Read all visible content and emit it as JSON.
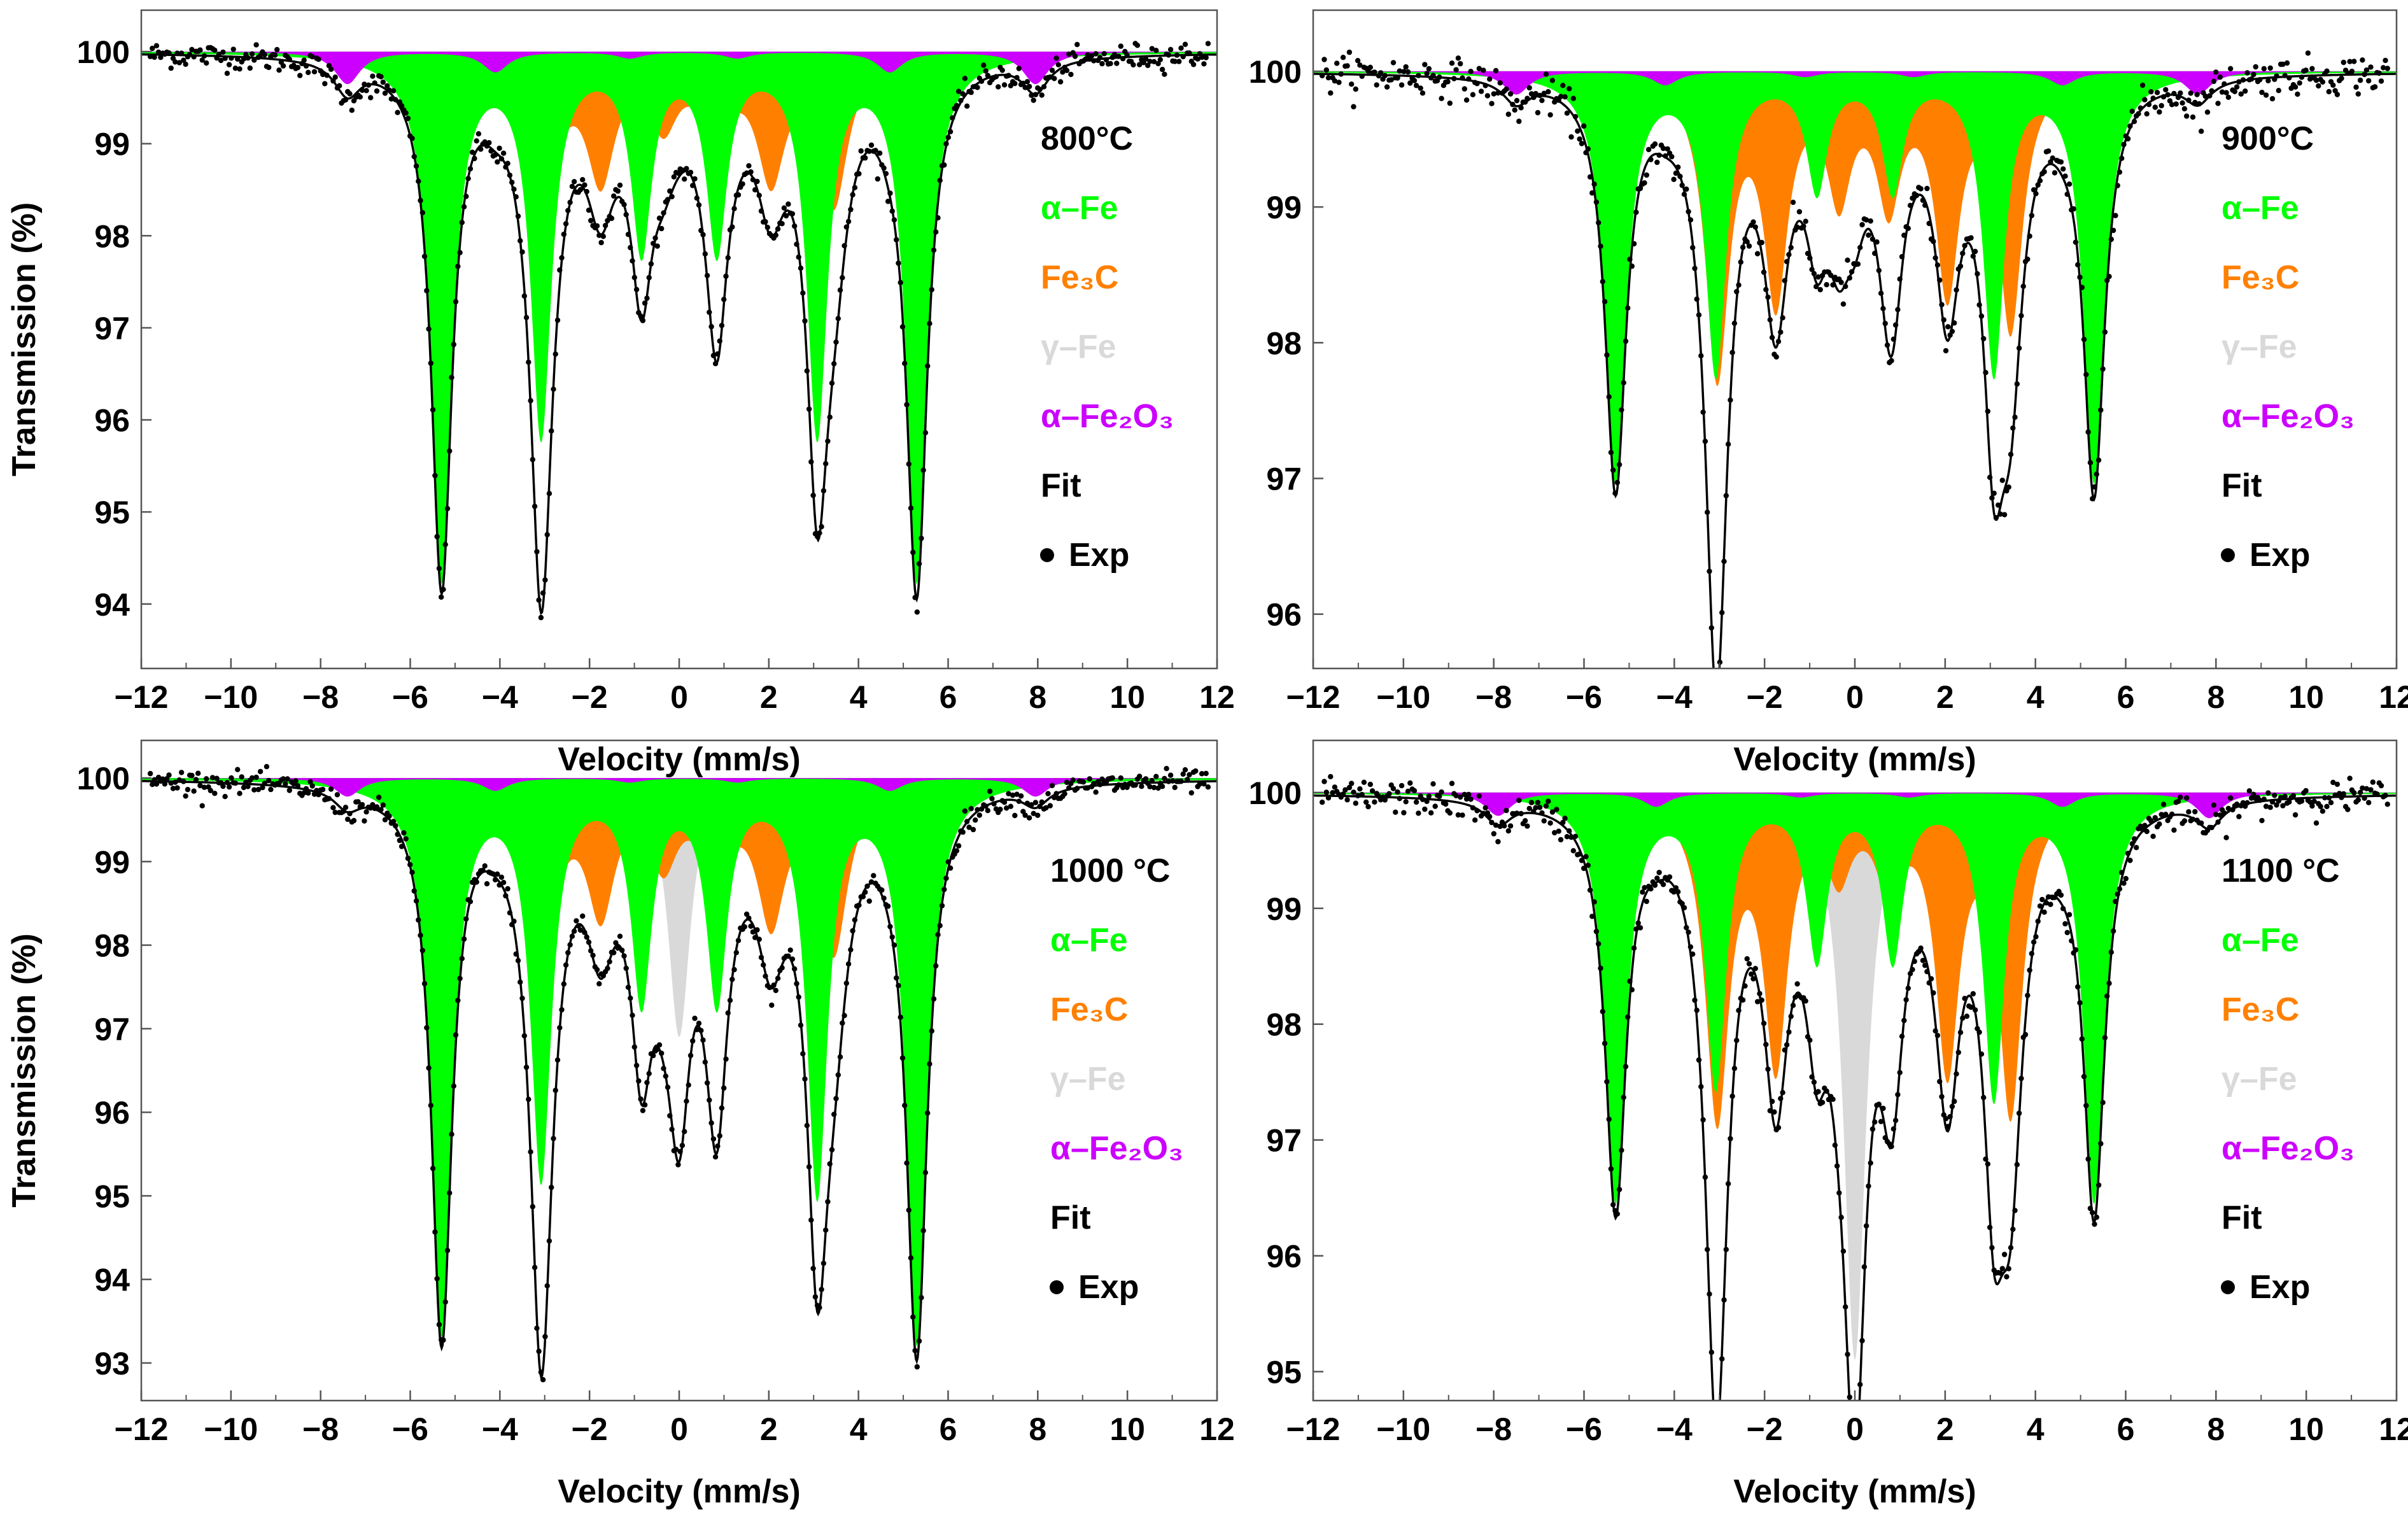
{
  "figure": {
    "colors": {
      "alpha_fe": "#00ff00",
      "fe3c": "#ff8000",
      "gamma_fe": "#d9d9d9",
      "alpha_fe2o3": "#cc00ff",
      "fit": "#000000",
      "exp": "#000000"
    }
  },
  "chart_data": [
    {
      "type": "scatter",
      "title": "800°C",
      "xlabel": "Velocity (mm/s)",
      "ylabel": "Transmission (%)",
      "xlim": [
        -12,
        12
      ],
      "ylim": [
        93.3,
        100.45
      ],
      "xticks": [
        -12,
        -10,
        -8,
        -6,
        -4,
        -2,
        0,
        2,
        4,
        6,
        8,
        10,
        12
      ],
      "xtick_labels": [
        "−12",
        "−10",
        "−8",
        "−6",
        "−4",
        "−2",
        "0",
        "2",
        "4",
        "6",
        "8",
        "10",
        "12"
      ],
      "yticks": [
        94,
        95,
        96,
        97,
        98,
        99,
        100
      ],
      "ytick_labels": [
        "94",
        "95",
        "96",
        "97",
        "98",
        "99",
        "100"
      ],
      "legend": [
        {
          "text": "800°C",
          "color": "#000000",
          "role": "title"
        },
        {
          "text": "α–Fe",
          "color": "#00ff00",
          "role": "alpha_fe"
        },
        {
          "text": "Fe₃C",
          "color": "#ff8000",
          "role": "fe3c"
        },
        {
          "text": "γ–Fe",
          "color": "#d9d9d9",
          "role": "gamma_fe"
        },
        {
          "text": "α–Fe₂O₃",
          "color": "#cc00ff",
          "role": "alpha_fe2o3"
        },
        {
          "text": "Fit",
          "color": "#000000",
          "role": "fit"
        },
        {
          "text": "Exp",
          "color": "#000000",
          "role": "exp"
        }
      ],
      "series": [
        {
          "name": "α-Fe",
          "color": "#00ff00",
          "gamma": 0.28,
          "positions": [
            -5.3,
            -3.08,
            -0.84,
            0.84,
            3.08,
            5.3
          ],
          "depths": [
            5.7,
            4.1,
            2.1,
            2.1,
            4.1,
            5.7
          ]
        },
        {
          "name": "Fe3C",
          "color": "#ff8000",
          "gamma": 0.38,
          "positions": [
            -3.05,
            -1.75,
            -0.35,
            0.8,
            2.05,
            3.45
          ],
          "depths": [
            1.7,
            1.3,
            0.7,
            0.8,
            1.3,
            1.6
          ]
        },
        {
          "name": "γ-Fe",
          "color": "#d9d9d9",
          "gamma": 0.35,
          "positions": [
            0.0
          ],
          "depths": [
            0.15
          ]
        },
        {
          "name": "α-Fe2O3",
          "color": "#cc00ff",
          "gamma": 0.35,
          "positions": [
            -7.4,
            -4.1,
            -1.1,
            1.3,
            4.7,
            7.95
          ],
          "depths": [
            0.35,
            0.22,
            0.07,
            0.07,
            0.22,
            0.35
          ]
        }
      ]
    },
    {
      "type": "scatter",
      "title": "900°C",
      "xlabel": "Velocity (mm/s)",
      "ylabel": "",
      "xlim": [
        -12,
        12
      ],
      "ylim": [
        95.6,
        100.45
      ],
      "xticks": [
        -12,
        -10,
        -8,
        -6,
        -4,
        -2,
        0,
        2,
        4,
        6,
        8,
        10,
        12
      ],
      "xtick_labels": [
        "−12",
        "−10",
        "−8",
        "−6",
        "−4",
        "−2",
        "0",
        "2",
        "4",
        "6",
        "8",
        "10",
        "12"
      ],
      "yticks": [
        96,
        97,
        98,
        99,
        100
      ],
      "ytick_labels": [
        "96",
        "97",
        "98",
        "99",
        "100"
      ],
      "legend": [
        {
          "text": "900°C",
          "color": "#000000",
          "role": "title"
        },
        {
          "text": "α–Fe",
          "color": "#00ff00",
          "role": "alpha_fe"
        },
        {
          "text": "Fe₃C",
          "color": "#ff8000",
          "role": "fe3c"
        },
        {
          "text": "γ–Fe",
          "color": "#d9d9d9",
          "role": "gamma_fe"
        },
        {
          "text": "α–Fe₂O₃",
          "color": "#cc00ff",
          "role": "alpha_fe2o3"
        },
        {
          "text": "Fit",
          "color": "#000000",
          "role": "fit"
        },
        {
          "text": "Exp",
          "color": "#000000",
          "role": "exp"
        }
      ],
      "series": [
        {
          "name": "α-Fe",
          "color": "#00ff00",
          "gamma": 0.28,
          "positions": [
            -5.3,
            -3.08,
            -0.84,
            0.84,
            3.08,
            5.3
          ],
          "depths": [
            3.0,
            2.2,
            0.85,
            0.85,
            2.2,
            3.0
          ]
        },
        {
          "name": "Fe3C",
          "color": "#ff8000",
          "gamma": 0.32,
          "positions": [
            -3.05,
            -1.75,
            -0.35,
            0.75,
            2.05,
            3.45
          ],
          "depths": [
            2.2,
            1.6,
            0.85,
            0.9,
            1.55,
            1.85
          ]
        },
        {
          "name": "γ-Fe",
          "color": "#d9d9d9",
          "gamma": 0.3,
          "positions": [
            0.0
          ],
          "depths": [
            0.55
          ]
        },
        {
          "name": "α-Fe2O3",
          "color": "#cc00ff",
          "gamma": 0.35,
          "positions": [
            -7.5,
            -4.2,
            -1.1,
            1.3,
            4.6,
            7.6
          ],
          "depths": [
            0.17,
            0.1,
            0.04,
            0.04,
            0.1,
            0.17
          ]
        }
      ]
    },
    {
      "type": "scatter",
      "title": "1000 °C",
      "xlabel": "Velocity (mm/s)",
      "ylabel": "Transmission (%)",
      "xlim": [
        -12,
        12
      ],
      "ylim": [
        92.55,
        100.45
      ],
      "xticks": [
        -12,
        -10,
        -8,
        -6,
        -4,
        -2,
        0,
        2,
        4,
        6,
        8,
        10,
        12
      ],
      "xtick_labels": [
        "−12",
        "−10",
        "−8",
        "−6",
        "−4",
        "−2",
        "0",
        "2",
        "4",
        "6",
        "8",
        "10",
        "12"
      ],
      "yticks": [
        93,
        94,
        95,
        96,
        97,
        98,
        99,
        100
      ],
      "ytick_labels": [
        "93",
        "94",
        "95",
        "96",
        "97",
        "98",
        "99",
        "100"
      ],
      "legend": [
        {
          "text": "1000 °C",
          "color": "#000000",
          "role": "title"
        },
        {
          "text": "α–Fe",
          "color": "#00ff00",
          "role": "alpha_fe"
        },
        {
          "text": "Fe₃C",
          "color": "#ff8000",
          "role": "fe3c"
        },
        {
          "text": "γ–Fe",
          "color": "#d9d9d9",
          "role": "gamma_fe"
        },
        {
          "text": "α–Fe₂O₃",
          "color": "#cc00ff",
          "role": "alpha_fe2o3"
        },
        {
          "text": "Fit",
          "color": "#000000",
          "role": "fit"
        },
        {
          "text": "Exp",
          "color": "#000000",
          "role": "exp"
        }
      ],
      "series": [
        {
          "name": "α-Fe",
          "color": "#00ff00",
          "gamma": 0.28,
          "positions": [
            -5.3,
            -3.08,
            -0.84,
            0.84,
            3.08,
            5.3
          ],
          "depths": [
            6.6,
            4.7,
            2.6,
            2.6,
            4.9,
            6.7
          ]
        },
        {
          "name": "Fe3C",
          "color": "#ff8000",
          "gamma": 0.38,
          "positions": [
            -3.05,
            -1.75,
            -0.35,
            0.8,
            2.05,
            3.45
          ],
          "depths": [
            2.1,
            1.5,
            0.9,
            1.0,
            1.6,
            2.0
          ]
        },
        {
          "name": "γ-Fe",
          "color": "#d9d9d9",
          "gamma": 0.3,
          "positions": [
            0.0
          ],
          "depths": [
            3.1
          ]
        },
        {
          "name": "α-Fe2O3",
          "color": "#cc00ff",
          "gamma": 0.35,
          "positions": [
            -7.4,
            -4.1,
            -1.1,
            1.3,
            4.7,
            7.95
          ],
          "depths": [
            0.22,
            0.15,
            0.05,
            0.05,
            0.15,
            0.22
          ]
        }
      ]
    },
    {
      "type": "scatter",
      "title": "1100 °C",
      "xlabel": "Velocity (mm/s)",
      "ylabel": "",
      "xlim": [
        -12,
        12
      ],
      "ylim": [
        94.75,
        100.45
      ],
      "xticks": [
        -12,
        -10,
        -8,
        -6,
        -4,
        -2,
        0,
        2,
        4,
        6,
        8,
        10,
        12
      ],
      "xtick_labels": [
        "−12",
        "−10",
        "−8",
        "−6",
        "−4",
        "−2",
        "0",
        "2",
        "4",
        "6",
        "8",
        "10",
        "12"
      ],
      "yticks": [
        95,
        96,
        97,
        98,
        99,
        100
      ],
      "ytick_labels": [
        "95",
        "96",
        "97",
        "98",
        "99",
        "100"
      ],
      "legend": [
        {
          "text": "1100 °C",
          "color": "#000000",
          "role": "title"
        },
        {
          "text": "α–Fe",
          "color": "#00ff00",
          "role": "alpha_fe"
        },
        {
          "text": "Fe₃C",
          "color": "#ff8000",
          "role": "fe3c"
        },
        {
          "text": "γ–Fe",
          "color": "#d9d9d9",
          "role": "gamma_fe"
        },
        {
          "text": "α–Fe₂O₃",
          "color": "#cc00ff",
          "role": "alpha_fe2o3"
        },
        {
          "text": "Fit",
          "color": "#000000",
          "role": "fit"
        },
        {
          "text": "Exp",
          "color": "#000000",
          "role": "exp"
        }
      ],
      "series": [
        {
          "name": "α-Fe",
          "color": "#00ff00",
          "gamma": 0.28,
          "positions": [
            -5.3,
            -3.08,
            -0.84,
            0.84,
            3.08,
            5.3
          ],
          "depths": [
            3.5,
            2.5,
            1.4,
            1.4,
            2.6,
            3.5
          ]
        },
        {
          "name": "Fe3C",
          "color": "#ff8000",
          "gamma": 0.32,
          "positions": [
            -3.05,
            -1.75,
            -0.35,
            0.75,
            2.05,
            3.45
          ],
          "depths": [
            2.75,
            2.25,
            0.6,
            0.7,
            2.3,
            2.7
          ]
        },
        {
          "name": "γ-Fe",
          "color": "#d9d9d9",
          "gamma": 0.3,
          "positions": [
            0.0
          ],
          "depths": [
            4.9
          ]
        },
        {
          "name": "α-Fe2O3",
          "color": "#cc00ff",
          "gamma": 0.35,
          "positions": [
            -7.9,
            -4.4,
            -1.2,
            1.2,
            4.6,
            7.85
          ],
          "depths": [
            0.2,
            0.12,
            0.04,
            0.04,
            0.12,
            0.22
          ]
        }
      ]
    }
  ]
}
